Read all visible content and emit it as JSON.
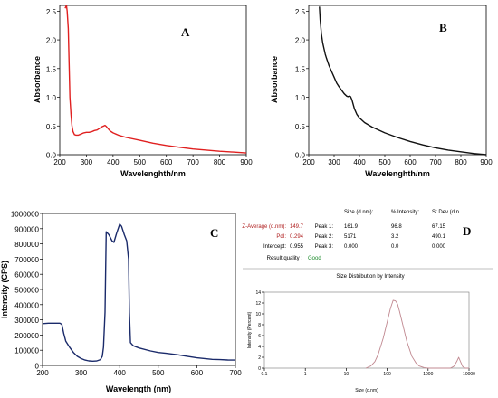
{
  "panels": {
    "a": "A",
    "b": "B",
    "c": "C",
    "d": "D"
  },
  "chart_data": [
    {
      "id": "A",
      "type": "line",
      "xlabel": "Wavelenghth/nm",
      "ylabel": "Absorbance",
      "xlim": [
        200,
        900
      ],
      "ylim": [
        0,
        2.6
      ],
      "xticks": [
        200,
        300,
        400,
        500,
        600,
        700,
        800,
        900
      ],
      "yticks": [
        0.0,
        0.5,
        1.0,
        1.5,
        2.0,
        2.5
      ],
      "color": "#e02020",
      "x": [
        220,
        225,
        228,
        232,
        235,
        238,
        242,
        246,
        250,
        255,
        260,
        270,
        280,
        290,
        300,
        310,
        320,
        330,
        340,
        350,
        360,
        365,
        370,
        375,
        380,
        390,
        400,
        420,
        450,
        500,
        550,
        600,
        650,
        700,
        750,
        800,
        850,
        900
      ],
      "y": [
        2.55,
        2.6,
        2.5,
        2.2,
        1.6,
        1.0,
        0.7,
        0.5,
        0.4,
        0.35,
        0.34,
        0.34,
        0.36,
        0.38,
        0.39,
        0.39,
        0.4,
        0.42,
        0.43,
        0.46,
        0.49,
        0.5,
        0.51,
        0.49,
        0.46,
        0.41,
        0.38,
        0.34,
        0.3,
        0.25,
        0.2,
        0.16,
        0.13,
        0.1,
        0.08,
        0.06,
        0.045,
        0.03
      ]
    },
    {
      "id": "B",
      "type": "line",
      "xlabel": "Wavelenghth/nm",
      "ylabel": "Absorbance",
      "xlim": [
        200,
        900
      ],
      "ylim": [
        0,
        2.6
      ],
      "xticks": [
        200,
        300,
        400,
        500,
        600,
        700,
        800,
        900
      ],
      "yticks": [
        0.0,
        0.5,
        1.0,
        1.5,
        2.0,
        2.5
      ],
      "color": "#111111",
      "x": [
        242,
        245,
        250,
        255,
        260,
        265,
        270,
        280,
        290,
        300,
        310,
        320,
        330,
        340,
        350,
        355,
        360,
        365,
        370,
        380,
        390,
        400,
        420,
        450,
        500,
        550,
        600,
        650,
        700,
        750,
        800,
        850,
        900
      ],
      "y": [
        2.58,
        2.35,
        2.1,
        1.95,
        1.85,
        1.75,
        1.68,
        1.55,
        1.45,
        1.35,
        1.25,
        1.18,
        1.12,
        1.06,
        1.02,
        1.01,
        1.02,
        1.01,
        0.96,
        0.8,
        0.7,
        0.64,
        0.56,
        0.48,
        0.38,
        0.3,
        0.23,
        0.17,
        0.12,
        0.08,
        0.05,
        0.02,
        0.0
      ]
    },
    {
      "id": "C",
      "type": "line",
      "xlabel": "Wavelength (nm)",
      "ylabel": "Intensity (CPS)",
      "xlim": [
        200,
        700
      ],
      "ylim": [
        0,
        1000000
      ],
      "xticks": [
        200,
        300,
        400,
        500,
        600,
        700
      ],
      "yticks": [
        0,
        100000,
        200000,
        300000,
        400000,
        500000,
        600000,
        700000,
        800000,
        900000,
        1000000
      ],
      "color": "#1a2a6a",
      "x": [
        200,
        215,
        230,
        245,
        250,
        255,
        260,
        270,
        280,
        290,
        300,
        310,
        320,
        330,
        340,
        350,
        355,
        358,
        362,
        365,
        372,
        380,
        385,
        392,
        400,
        405,
        412,
        418,
        423,
        425,
        428,
        435,
        450,
        480,
        500,
        520,
        550,
        575,
        600,
        620,
        640,
        660,
        680,
        700
      ],
      "y": [
        275000,
        278000,
        278000,
        278000,
        270000,
        210000,
        160000,
        120000,
        85000,
        60000,
        45000,
        35000,
        30000,
        28000,
        29000,
        38000,
        60000,
        120000,
        350000,
        880000,
        860000,
        820000,
        810000,
        870000,
        930000,
        915000,
        860000,
        820000,
        700000,
        350000,
        150000,
        130000,
        115000,
        95000,
        85000,
        80000,
        70000,
        60000,
        50000,
        45000,
        40000,
        38000,
        36000,
        35000
      ]
    },
    {
      "id": "D",
      "type": "line",
      "title": "Size Distribution by Intensity",
      "xlabel": "Size (d.nm)",
      "ylabel": "Intensity (Percent)",
      "xlim": [
        0.1,
        10000
      ],
      "xscale": "log",
      "ylim": [
        0,
        14
      ],
      "xticks": [
        0.1,
        1,
        10,
        100,
        1000,
        10000
      ],
      "xticklabels": [
        "0.1",
        "1",
        "10",
        "100",
        "1000",
        "10000"
      ],
      "yticks": [
        0,
        2,
        4,
        6,
        8,
        10,
        12,
        14
      ],
      "color": "#c08890",
      "x": [
        30,
        40,
        50,
        60,
        80,
        100,
        120,
        140,
        160,
        180,
        200,
        250,
        300,
        400,
        500,
        600,
        800,
        1000,
        3500,
        4200,
        5000,
        5600,
        6200,
        7000,
        8000,
        10000
      ],
      "y": [
        0,
        0.4,
        1.2,
        2.5,
        5.5,
        8.5,
        11,
        12.5,
        12.4,
        11.8,
        10.5,
        7.5,
        5.0,
        2.2,
        1.0,
        0.4,
        0.1,
        0,
        0,
        0.3,
        1.2,
        2.0,
        1.2,
        0.3,
        0,
        0
      ]
    }
  ],
  "dls": {
    "zavg_label": "Z-Average (d.nm):",
    "zavg_value": "149.7",
    "pdi_label": "PdI:",
    "pdi_value": "0.294",
    "intercept_label": "Intercept:",
    "intercept_value": "0.955",
    "quality_label": "Result quality :",
    "quality_value": "Good",
    "headers": [
      "Size (d.nm):",
      "% Intensity:",
      "St Dev (d.n..."
    ],
    "peaks": [
      {
        "label": "Peak 1:",
        "size": "161.9",
        "intensity": "96.8",
        "stdev": "67.15"
      },
      {
        "label": "Peak 2:",
        "size": "5171",
        "intensity": "3.2",
        "stdev": "490.1"
      },
      {
        "label": "Peak 3:",
        "size": "0.000",
        "intensity": "0.0",
        "stdev": "0.000"
      }
    ]
  }
}
